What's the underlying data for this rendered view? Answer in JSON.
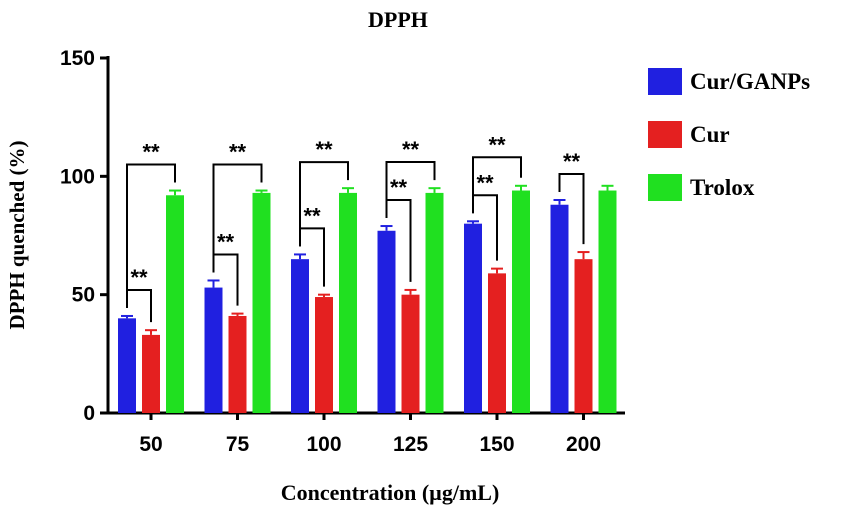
{
  "chart_data": {
    "type": "bar",
    "title": "DPPH",
    "xlabel": "Concentration (µg/mL)",
    "ylabel": "DPPH quenched (%)",
    "ylim": [
      0,
      150
    ],
    "yticks": [
      0,
      50,
      100,
      150
    ],
    "categories": [
      "50",
      "75",
      "100",
      "125",
      "150",
      "200"
    ],
    "series": [
      {
        "name": "Cur/GANPs",
        "color": "#2020e0",
        "values": [
          40,
          53,
          65,
          77,
          80,
          88
        ],
        "errors": [
          1,
          3,
          2,
          2,
          1,
          2
        ]
      },
      {
        "name": "Cur",
        "color": "#e42020",
        "values": [
          33,
          41,
          49,
          50,
          59,
          65
        ],
        "errors": [
          2,
          1,
          1,
          2,
          2,
          3
        ]
      },
      {
        "name": "Trolox",
        "color": "#20e020",
        "values": [
          92,
          93,
          93,
          93,
          94,
          94
        ],
        "errors": [
          2,
          1,
          2,
          2,
          2,
          2
        ]
      }
    ],
    "significance": [
      {
        "category": "50",
        "from": "Cur/GANPs",
        "to": "Cur",
        "label": "**"
      },
      {
        "category": "50",
        "from": "Cur/GANPs",
        "to": "Trolox",
        "label": "**"
      },
      {
        "category": "75",
        "from": "Cur/GANPs",
        "to": "Cur",
        "label": "**"
      },
      {
        "category": "75",
        "from": "Cur/GANPs",
        "to": "Trolox",
        "label": "**"
      },
      {
        "category": "100",
        "from": "Cur/GANPs",
        "to": "Cur",
        "label": "**"
      },
      {
        "category": "100",
        "from": "Cur/GANPs",
        "to": "Trolox",
        "label": "**"
      },
      {
        "category": "125",
        "from": "Cur/GANPs",
        "to": "Cur",
        "label": "**"
      },
      {
        "category": "125",
        "from": "Cur/GANPs",
        "to": "Trolox",
        "label": "**"
      },
      {
        "category": "150",
        "from": "Cur/GANPs",
        "to": "Cur",
        "label": "**"
      },
      {
        "category": "150",
        "from": "Cur/GANPs",
        "to": "Trolox",
        "label": "**"
      },
      {
        "category": "200",
        "from": "Cur/GANPs",
        "to": "Cur",
        "label": "**"
      }
    ],
    "legend": "right"
  }
}
